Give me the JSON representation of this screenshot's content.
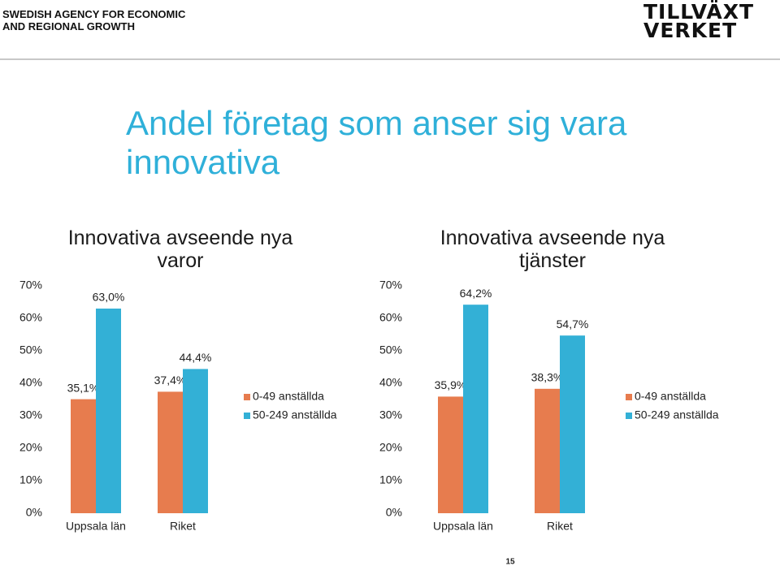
{
  "header": {
    "agency": [
      "SWEDISH AGENCY FOR ECONOMIC",
      "AND REGIONAL GROWTH"
    ],
    "logo": [
      "TILLVÄXT",
      "VERKET"
    ]
  },
  "title": "Andel företag som anser sig vara innovativa",
  "page_number": "15",
  "chart_data": [
    {
      "type": "bar",
      "title": "Innovativa avseende nya varor",
      "categories": [
        "Uppsala län",
        "Riket"
      ],
      "series": [
        {
          "name": "0-49 anställda",
          "color": "#e77c4e",
          "values": [
            35.1,
            37.4
          ],
          "value_labels": [
            "35,1%",
            "37,4%"
          ]
        },
        {
          "name": "50-249 anställda",
          "color": "#33b0d6",
          "values": [
            63.0,
            44.4
          ],
          "value_labels": [
            "63,0%",
            "44,4%"
          ]
        }
      ],
      "ylim": [
        0,
        70
      ],
      "yticks": [
        {
          "value": 0,
          "label": "0%"
        },
        {
          "value": 10,
          "label": "10%"
        },
        {
          "value": 20,
          "label": "20%"
        },
        {
          "value": 30,
          "label": "30%"
        },
        {
          "value": 40,
          "label": "40%"
        },
        {
          "value": 50,
          "label": "50%"
        },
        {
          "value": 60,
          "label": "60%"
        },
        {
          "value": 70,
          "label": "70%"
        }
      ],
      "legend": "right"
    },
    {
      "type": "bar",
      "title": "Innovativa avseende nya tjänster",
      "categories": [
        "Uppsala län",
        "Riket"
      ],
      "series": [
        {
          "name": "0-49 anställda",
          "color": "#e77c4e",
          "values": [
            35.9,
            38.3
          ],
          "value_labels": [
            "35,9%",
            "38,3%"
          ]
        },
        {
          "name": "50-249 anställda",
          "color": "#33b0d6",
          "values": [
            64.2,
            54.7
          ],
          "value_labels": [
            "64,2%",
            "54,7%"
          ]
        }
      ],
      "ylim": [
        0,
        70
      ],
      "yticks": [
        {
          "value": 0,
          "label": "0%"
        },
        {
          "value": 10,
          "label": "10%"
        },
        {
          "value": 20,
          "label": "20%"
        },
        {
          "value": 30,
          "label": "30%"
        },
        {
          "value": 40,
          "label": "40%"
        },
        {
          "value": 50,
          "label": "50%"
        },
        {
          "value": 60,
          "label": "60%"
        },
        {
          "value": 70,
          "label": "70%"
        }
      ],
      "legend": "right"
    }
  ]
}
